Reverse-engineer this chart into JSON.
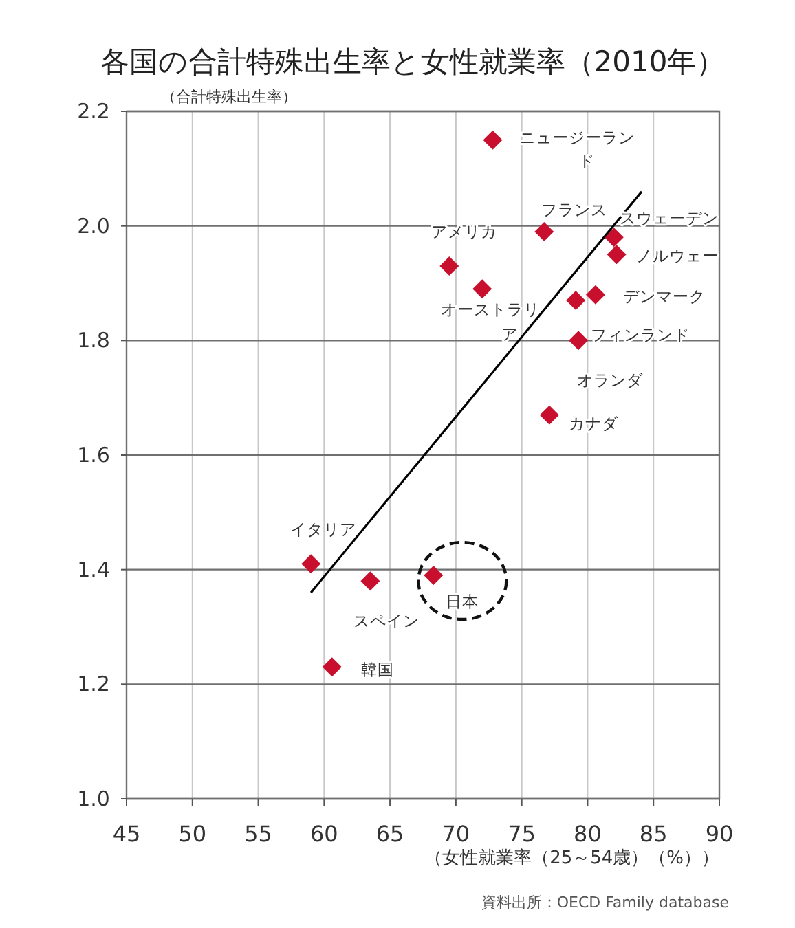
{
  "chart_data": {
    "type": "scatter",
    "title": "各国の合計特殊出生率と女性就業率（2010年）",
    "ylabel": "（合計特殊出生率）",
    "xlabel": "（女性就業率（25～54歳）（%））",
    "xlim": [
      45,
      90
    ],
    "xticks": [
      45,
      50,
      55,
      60,
      65,
      70,
      75,
      80,
      85,
      90
    ],
    "ylim": [
      1.0,
      2.2
    ],
    "yticks": [
      {
        "value": 1.0,
        "label": "1.0"
      },
      1.2,
      1.4,
      1.6,
      1.8,
      {
        "value": 2.0,
        "label": "2.0"
      },
      2.2
    ],
    "grid": true,
    "series": [
      {
        "type": "scatter",
        "color": "#c8102e",
        "marker": "diamond",
        "x": [
          72.8,
          76.7,
          82.0,
          82.2,
          69.5,
          72.0,
          80.6,
          79.1,
          79.3,
          77.1,
          59.0,
          63.5,
          68.3,
          60.6
        ],
        "values": [
          2.15,
          1.99,
          1.98,
          1.95,
          1.93,
          1.89,
          1.88,
          1.87,
          1.8,
          1.67,
          1.41,
          1.38,
          1.39,
          1.23
        ]
      },
      {
        "type": "line",
        "color": "#000000",
        "marker": "none",
        "line_style": "solid",
        "x": [
          59.0,
          84.1
        ],
        "values": [
          1.36,
          2.06
        ]
      }
    ],
    "annotations": [
      {
        "text": "ニュージーランド",
        "x": 72.8,
        "y": 2.15
      },
      {
        "text": "フランス",
        "x": 76.7,
        "y": 1.99
      },
      {
        "text": "スウェーデン",
        "x": 82.0,
        "y": 1.98
      },
      {
        "text": "ノルウェー",
        "x": 82.2,
        "y": 1.95
      },
      {
        "text": "アメリカ",
        "x": 69.5,
        "y": 1.93
      },
      {
        "text": "オーストラリア",
        "x": 72.0,
        "y": 1.89
      },
      {
        "text": "デンマーク",
        "x": 80.6,
        "y": 1.88
      },
      {
        "text": "フィンランド",
        "x": 79.1,
        "y": 1.87
      },
      {
        "text": "オランダ",
        "x": 79.3,
        "y": 1.8
      },
      {
        "text": "カナダ",
        "x": 77.1,
        "y": 1.67
      },
      {
        "text": "イタリア",
        "x": 59.0,
        "y": 1.41
      },
      {
        "text": "スペイン",
        "x": 63.5,
        "y": 1.38
      },
      {
        "text": "日本",
        "x": 68.3,
        "y": 1.39
      },
      {
        "text": "韓国",
        "x": 60.6,
        "y": 1.23
      },
      "資料出所：OECD Family database"
    ]
  }
}
